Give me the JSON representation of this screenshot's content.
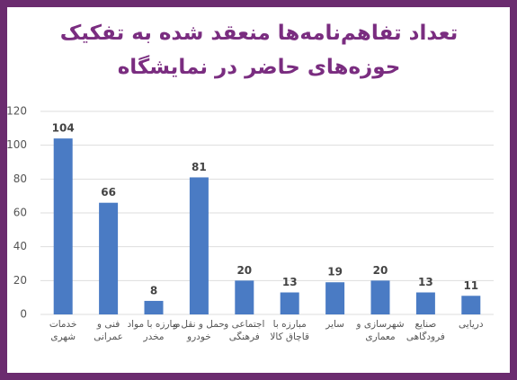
{
  "chart_data": {
    "type": "bar",
    "title": "تعداد تفاهم‌نامه‌ها منعقد شده به تفکیک حوزه‌های حاضر در نمایشگاه",
    "categories": [
      "خدمات شهری",
      "فنی و عمرانی",
      "مبارزه با مواد مخدر",
      "حمل و نقل و خودرو",
      "اجتماعی و فرهنگی",
      "مبارزه با قاچاق کالا",
      "سایر",
      "شهرسازی و معماری",
      "صنایع فرودگاهی",
      "دریایی"
    ],
    "values": [
      104,
      66,
      8,
      81,
      20,
      13,
      19,
      20,
      13,
      11
    ],
    "color": "#4a7bc4",
    "ylim": [
      0,
      120
    ],
    "yticks": [
      0,
      20,
      40,
      60,
      80,
      100,
      120
    ],
    "grid": true
  }
}
